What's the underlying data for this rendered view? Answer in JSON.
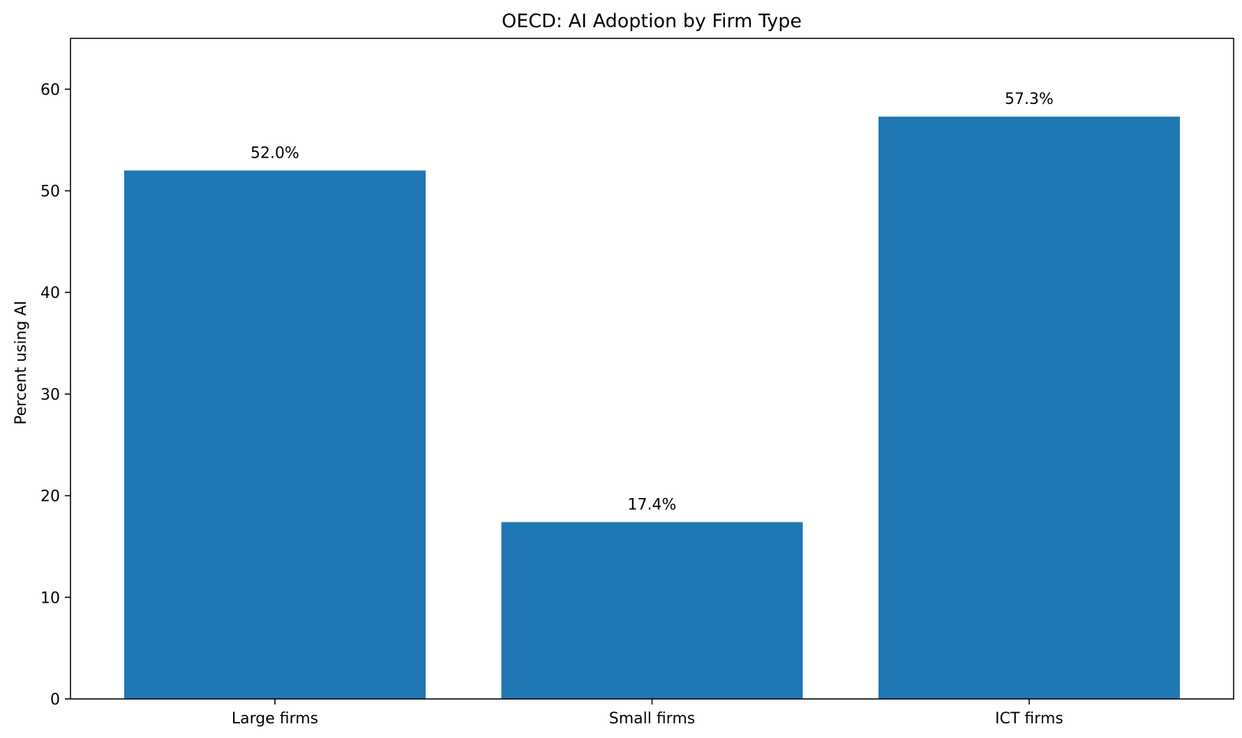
{
  "chart_data": {
    "type": "bar",
    "title": "OECD: AI Adoption by Firm Type",
    "xlabel": "",
    "ylabel": "Percent using AI",
    "categories": [
      "Large firms",
      "Small firms",
      "ICT firms"
    ],
    "values": [
      52.0,
      17.4,
      57.3
    ],
    "value_labels": [
      "52.0%",
      "17.4%",
      "57.3%"
    ],
    "ylim": [
      0,
      65
    ],
    "yticks": [
      0,
      10,
      20,
      30,
      40,
      50,
      60
    ],
    "bar_color": "#1f77b4",
    "grid": false,
    "legend": "none"
  }
}
